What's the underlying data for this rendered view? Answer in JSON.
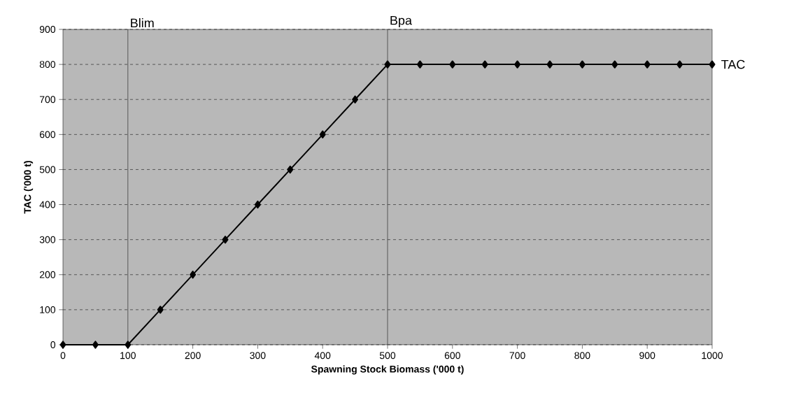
{
  "chart_data": {
    "type": "line",
    "xlabel": "Spawning Stock Biomass ('000 t)",
    "ylabel": "TAC ('000 t)",
    "x": [
      0,
      50,
      100,
      150,
      200,
      250,
      300,
      350,
      400,
      450,
      500,
      550,
      600,
      650,
      700,
      750,
      800,
      850,
      900,
      950,
      1000
    ],
    "series": [
      {
        "name": "TAC",
        "color": "#000000",
        "values": [
          0,
          0,
          0,
          100,
          200,
          300,
          400,
          500,
          600,
          700,
          800,
          800,
          800,
          800,
          800,
          800,
          800,
          800,
          800,
          800,
          800
        ]
      }
    ],
    "xlim": [
      0,
      1000
    ],
    "xticks": [
      0,
      100,
      200,
      300,
      400,
      500,
      600,
      700,
      800,
      900,
      1000
    ],
    "ylim": [
      0,
      900
    ],
    "yticks": [
      0,
      100,
      200,
      300,
      400,
      500,
      600,
      700,
      800,
      900
    ],
    "ref_lines": [
      {
        "axis": "x",
        "value": 100,
        "label": "Blim",
        "color": "#000000"
      },
      {
        "axis": "x",
        "value": 500,
        "label": "Bpa",
        "color": "#000000"
      }
    ],
    "grid": "y",
    "marker": "diamond",
    "line_style": "solid"
  }
}
